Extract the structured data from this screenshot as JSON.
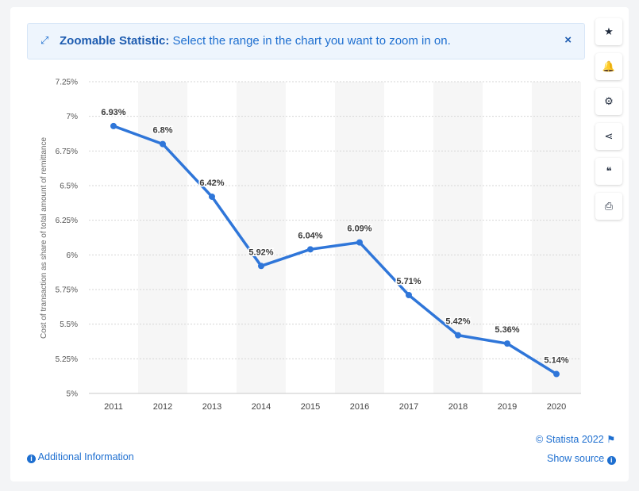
{
  "banner": {
    "title": "Zoomable Statistic:",
    "text": "Select the range in the chart you want to zoom in on.",
    "close_label": "×"
  },
  "side_tools": [
    {
      "name": "bookmark-button",
      "icon": "star-icon",
      "glyph": "★"
    },
    {
      "name": "notification-button",
      "icon": "bell-icon",
      "glyph": "🔔"
    },
    {
      "name": "settings-button",
      "icon": "gear-icon",
      "glyph": "⚙"
    },
    {
      "name": "share-button",
      "icon": "share-icon",
      "glyph": "⋖"
    },
    {
      "name": "cite-button",
      "icon": "quote-icon",
      "glyph": "❝"
    },
    {
      "name": "print-button",
      "icon": "printer-icon",
      "glyph": "⎙"
    }
  ],
  "chart_data": {
    "type": "line",
    "categories": [
      "2011",
      "2012",
      "2013",
      "2014",
      "2015",
      "2016",
      "2017",
      "2018",
      "2019",
      "2020"
    ],
    "values": [
      6.93,
      6.8,
      6.42,
      5.92,
      6.04,
      6.09,
      5.71,
      5.42,
      5.36,
      5.14
    ],
    "data_labels": [
      "6.93%",
      "6.8%",
      "6.42%",
      "5.92%",
      "6.04%",
      "6.09%",
      "5.71%",
      "5.42%",
      "5.36%",
      "5.14%"
    ],
    "y_ticks": [
      5,
      5.25,
      5.5,
      5.75,
      6,
      6.25,
      6.5,
      6.75,
      7,
      7.25
    ],
    "y_tick_labels": [
      "5%",
      "5.25%",
      "5.5%",
      "5.75%",
      "6%",
      "6.25%",
      "6.5%",
      "6.75%",
      "7%",
      "7.25%"
    ],
    "ylim": [
      5,
      7.25
    ],
    "ylabel": "Cost of transaction as share of total amount of remittance",
    "xlabel": "",
    "line_color": "#2f76d9",
    "grid": true
  },
  "footer": {
    "copyright": "© Statista 2022",
    "additional_info": "Additional Information",
    "show_source": "Show source"
  }
}
